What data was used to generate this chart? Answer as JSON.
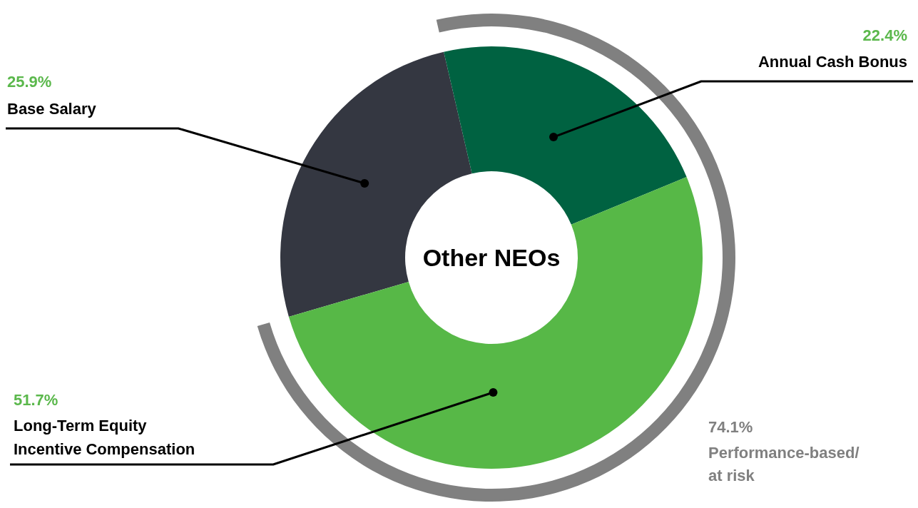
{
  "chart_data": {
    "type": "donut",
    "title": "Other NEOs",
    "categories": [
      "Base Salary",
      "Annual Cash Bonus",
      "Long-Term Equity Incentive Compensation"
    ],
    "values": [
      25.9,
      22.4,
      51.7
    ],
    "colors": [
      "#343741",
      "#006241",
      "#57b847"
    ],
    "value_labels": [
      "25.9%",
      "22.4%",
      "51.7%"
    ],
    "annotations": [
      "74.1%",
      "Performance-based/ at risk"
    ]
  }
}
